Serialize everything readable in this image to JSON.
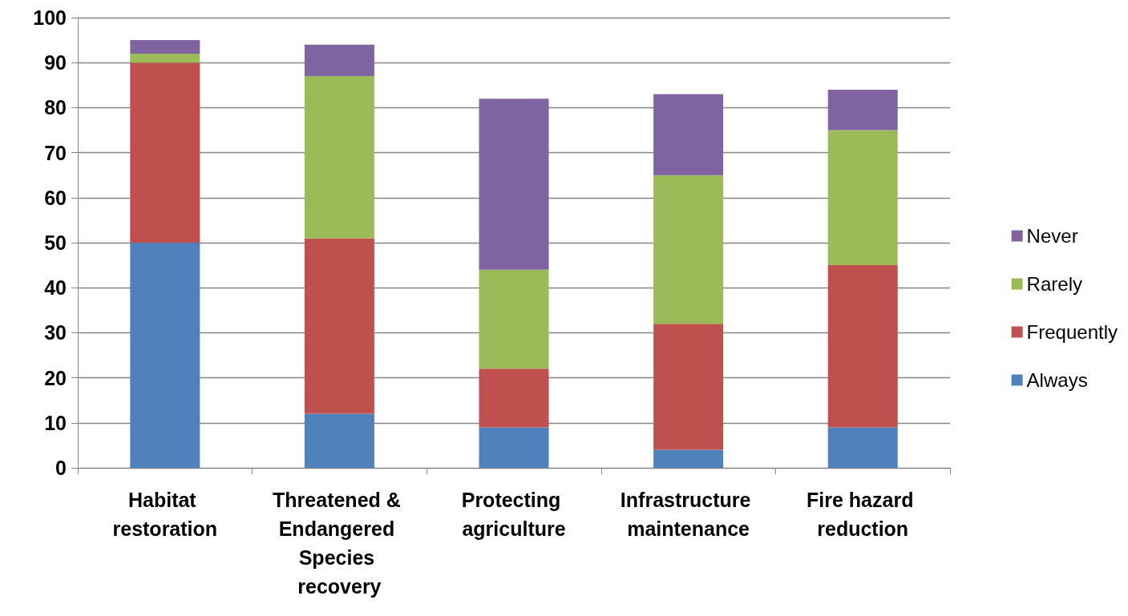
{
  "chart_data": {
    "type": "bar",
    "stacked": true,
    "categories": [
      "Habitat restoration",
      "Threatened & Endangered Species recovery",
      "Protecting agriculture",
      "Infrastructure maintenance",
      "Fire hazard reduction"
    ],
    "series": [
      {
        "name": "Always",
        "color": "#4f81bd",
        "values": [
          50,
          12,
          9,
          4,
          9
        ]
      },
      {
        "name": "Frequently",
        "color": "#c0504d",
        "values": [
          40,
          39,
          13,
          28,
          36
        ]
      },
      {
        "name": "Rarely",
        "color": "#9bbb59",
        "values": [
          2,
          36,
          22,
          33,
          30
        ]
      },
      {
        "name": "Never",
        "color": "#8064a2",
        "values": [
          3,
          7,
          38,
          18,
          9
        ]
      }
    ],
    "ylim": [
      0,
      100
    ],
    "yticks": [
      0,
      10,
      20,
      30,
      40,
      50,
      60,
      70,
      80,
      90,
      100
    ],
    "grid": "y",
    "legend": "right"
  }
}
